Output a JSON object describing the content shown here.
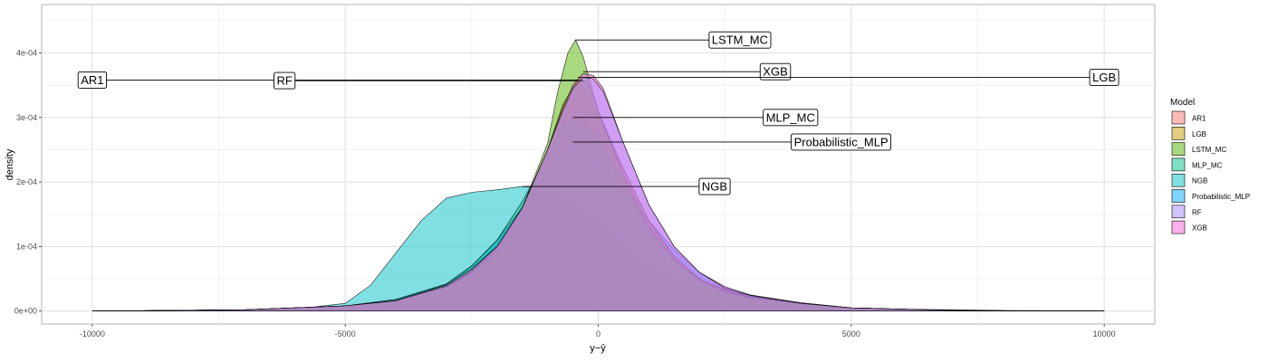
{
  "chart_data": {
    "type": "area",
    "xlabel": "y−ŷ",
    "ylabel": "density",
    "xlim": [
      -11000,
      11000
    ],
    "ylim": [
      -2e-05,
      0.000475
    ],
    "x_ticks": [
      -10000,
      -5000,
      0,
      5000,
      10000
    ],
    "x_tick_labels": [
      "-10000",
      "-5000",
      "0",
      "5000",
      "10000"
    ],
    "y_ticks": [
      0,
      0.0001,
      0.0002,
      0.0003,
      0.0004
    ],
    "y_tick_labels": [
      "0e+00",
      "1e-04",
      "2e-04",
      "3e-04",
      "4e-04"
    ],
    "grid": true,
    "legend": {
      "title": "Model",
      "placement": "right",
      "entries": [
        "AR1",
        "LGB",
        "LSTM_MC",
        "MLP_MC",
        "NGB",
        "Probabilistic_MLP",
        "RF",
        "XGB"
      ]
    },
    "series": [
      {
        "name": "NGB",
        "color": "#00BFC4",
        "x": [
          -10000,
          -7000,
          -6000,
          -5000,
          -4500,
          -4000,
          -3500,
          -3000,
          -2500,
          -2000,
          -1500,
          -1000,
          -500,
          0,
          500,
          1000,
          1500,
          2000,
          2500,
          3000,
          3500,
          4000,
          5000,
          6000,
          7000,
          8000,
          9000,
          10000
        ],
        "y": [
          0,
          1e-06,
          3e-06,
          1.2e-05,
          4e-05,
          9e-05,
          0.00014,
          0.000175,
          0.000184,
          0.000188,
          0.000193,
          0.00019,
          0.00017,
          0.00014,
          0.000105,
          7.5e-05,
          5.5e-05,
          4e-05,
          3e-05,
          2.5e-05,
          1.8e-05,
          1.2e-05,
          5e-06,
          2e-06,
          1e-06,
          0,
          0,
          0
        ]
      },
      {
        "name": "Probabilistic_MLP",
        "color": "#00A9FF",
        "x": [
          -10000,
          -7000,
          -5000,
          -4000,
          -3000,
          -2500,
          -2000,
          -1500,
          -1000,
          -500,
          0,
          500,
          1000,
          1500,
          2000,
          2500,
          3000,
          4000,
          5000,
          6000,
          7000,
          8000,
          10000
        ],
        "y": [
          0,
          2e-06,
          8e-06,
          1.8e-05,
          4.2e-05,
          7e-05,
          0.00011,
          0.00016,
          0.000215,
          0.000262,
          0.000235,
          0.000185,
          0.00014,
          9.5e-05,
          6e-05,
          3.5e-05,
          2.5e-05,
          1.3e-05,
          5e-06,
          3e-06,
          2e-06,
          1e-06,
          0
        ]
      },
      {
        "name": "AR1",
        "color": "#F8766D",
        "x": [
          -10000,
          -7000,
          -5000,
          -4000,
          -3000,
          -2500,
          -2000,
          -1500,
          -1000,
          -700,
          -400,
          -200,
          0,
          500,
          1000,
          1500,
          2000,
          2500,
          3000,
          4000,
          5000,
          7000,
          10000
        ],
        "y": [
          0,
          2e-06,
          8e-06,
          1.6e-05,
          4e-05,
          6.5e-05,
          0.0001,
          0.00016,
          0.00025,
          0.00032,
          0.000358,
          0.000335,
          0.0003,
          0.00022,
          0.00014,
          8.5e-05,
          5e-05,
          3.3e-05,
          2.2e-05,
          1.2e-05,
          5e-06,
          1e-06,
          0
        ]
      },
      {
        "name": "MLP_MC",
        "color": "#00C08B",
        "x": [
          -10000,
          -7000,
          -5000,
          -4000,
          -3000,
          -2500,
          -2000,
          -1500,
          -1000,
          -700,
          -500,
          -300,
          0,
          500,
          1000,
          1500,
          2000,
          2500,
          3000,
          4000,
          5000,
          7000,
          10000
        ],
        "y": [
          0,
          2e-06,
          8e-06,
          1.8e-05,
          4.2e-05,
          7e-05,
          0.00011,
          0.00017,
          0.00024,
          0.00029,
          0.000298,
          0.000295,
          0.00027,
          0.0002,
          0.00013,
          8e-05,
          4.8e-05,
          3e-05,
          2.2e-05,
          1.2e-05,
          5e-06,
          1e-06,
          0
        ]
      },
      {
        "name": "LGB",
        "color": "#C49A00",
        "x": [
          -10000,
          -7000,
          -5000,
          -4000,
          -3000,
          -2500,
          -2000,
          -1500,
          -1000,
          -700,
          -400,
          -200,
          0,
          500,
          1000,
          1500,
          2000,
          2500,
          3000,
          4000,
          5000,
          7000,
          10000
        ],
        "y": [
          0,
          2e-06,
          8e-06,
          1.6e-05,
          4e-05,
          6.5e-05,
          0.0001,
          0.00016,
          0.00025,
          0.00032,
          0.00036,
          0.000355,
          0.00031,
          0.00022,
          0.00014,
          8.5e-05,
          5e-05,
          3.3e-05,
          2.2e-05,
          1.2e-05,
          5e-06,
          1e-06,
          0
        ]
      },
      {
        "name": "LSTM_MC",
        "color": "#53B400",
        "x": [
          -10000,
          -7000,
          -5000,
          -4000,
          -3000,
          -2500,
          -2000,
          -1500,
          -1000,
          -800,
          -600,
          -450,
          -300,
          0,
          500,
          1000,
          1500,
          2000,
          2500,
          3000,
          4000,
          5000,
          7000,
          10000
        ],
        "y": [
          0,
          2e-06,
          8e-06,
          1.6e-05,
          3.8e-05,
          6e-05,
          9.5e-05,
          0.00016,
          0.00026,
          0.00034,
          0.0004,
          0.00042,
          0.000395,
          0.00031,
          0.00021,
          0.00013,
          8e-05,
          4.8e-05,
          3e-05,
          2.1e-05,
          1.2e-05,
          5e-06,
          1e-06,
          0
        ]
      },
      {
        "name": "XGB",
        "color": "#FB61D7",
        "x": [
          -10000,
          -7000,
          -5000,
          -4000,
          -3000,
          -2500,
          -2000,
          -1500,
          -1000,
          -700,
          -500,
          -300,
          -100,
          100,
          500,
          1000,
          1500,
          2000,
          2500,
          3000,
          4000,
          5000,
          7000,
          10000
        ],
        "y": [
          0,
          2e-06,
          8e-06,
          1.6e-05,
          3.8e-05,
          6.2e-05,
          0.0001,
          0.00016,
          0.00025,
          0.000315,
          0.00035,
          0.000368,
          0.000365,
          0.000345,
          0.00026,
          0.000165,
          0.0001,
          6e-05,
          3.8e-05,
          2.5e-05,
          1.3e-05,
          5e-06,
          1e-06,
          0
        ]
      },
      {
        "name": "RF",
        "color": "#A58AFF",
        "x": [
          -10000,
          -7000,
          -5000,
          -4000,
          -3000,
          -2500,
          -2000,
          -1500,
          -1000,
          -700,
          -500,
          -300,
          -100,
          100,
          500,
          1000,
          1500,
          2000,
          2500,
          3000,
          4000,
          5000,
          7000,
          10000
        ],
        "y": [
          0,
          2e-06,
          8e-06,
          1.6e-05,
          4e-05,
          6.5e-05,
          0.0001,
          0.00016,
          0.00025,
          0.00031,
          0.000345,
          0.000362,
          0.00036,
          0.00034,
          0.00026,
          0.000165,
          0.0001,
          6e-05,
          3.6e-05,
          2.4e-05,
          1.2e-05,
          5e-06,
          1e-06,
          0
        ]
      }
    ],
    "annotations": [
      {
        "label": "LSTM_MC",
        "peak_x": -450,
        "peak_y": 0.00042,
        "label_x": 2800,
        "label_y": 0.00042
      },
      {
        "label": "XGB",
        "peak_x": -300,
        "peak_y": 0.000371,
        "label_x": 3500,
        "label_y": 0.000371
      },
      {
        "label": "LGB",
        "peak_x": -400,
        "peak_y": 0.000362,
        "label_x": 10000,
        "label_y": 0.000362
      },
      {
        "label": "AR1",
        "peak_x": -400,
        "peak_y": 0.000358,
        "label_x": -10000,
        "label_y": 0.000358
      },
      {
        "label": "RF",
        "peak_x": -300,
        "peak_y": 0.000357,
        "label_x": -6200,
        "label_y": 0.000357
      },
      {
        "label": "MLP_MC",
        "peak_x": -500,
        "peak_y": 0.0003,
        "label_x": 3800,
        "label_y": 0.0003
      },
      {
        "label": "Probabilistic_MLP",
        "peak_x": -500,
        "peak_y": 0.000262,
        "label_x": 4800,
        "label_y": 0.000262
      },
      {
        "label": "NGB",
        "peak_x": -1500,
        "peak_y": 0.000193,
        "label_x": 2300,
        "label_y": 0.000193
      }
    ]
  }
}
